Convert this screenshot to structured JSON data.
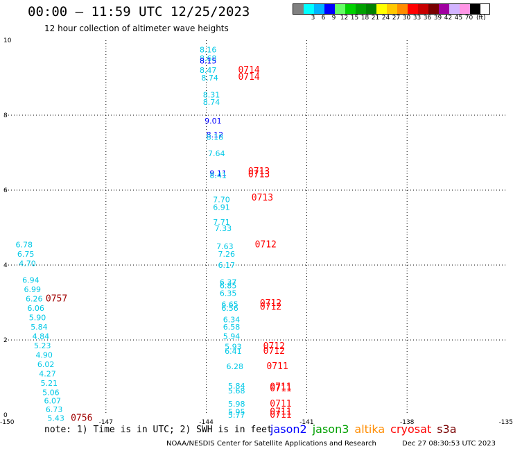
{
  "header": {
    "title": "00:00 – 11:59 UTC 12/25/2023",
    "subtitle": "12 hour collection of altimeter wave heights"
  },
  "legend": {
    "unit": "(ft)",
    "steps": [
      {
        "label": "",
        "color": "#808080"
      },
      {
        "label": "3",
        "color": "#00ffff"
      },
      {
        "label": "6",
        "color": "#00b4ff"
      },
      {
        "label": "9",
        "color": "#0000ff"
      },
      {
        "label": "12",
        "color": "#64ff64"
      },
      {
        "label": "15",
        "color": "#00d200"
      },
      {
        "label": "18",
        "color": "#00a000"
      },
      {
        "label": "21",
        "color": "#008000"
      },
      {
        "label": "24",
        "color": "#ffff00"
      },
      {
        "label": "27",
        "color": "#ffc800"
      },
      {
        "label": "30",
        "color": "#ff8c00"
      },
      {
        "label": "33",
        "color": "#ff0000"
      },
      {
        "label": "36",
        "color": "#c80000"
      },
      {
        "label": "39",
        "color": "#780000"
      },
      {
        "label": "42",
        "color": "#a000a0"
      },
      {
        "label": "45",
        "color": "#d2b4ff"
      },
      {
        "label": "70",
        "color": "#ff96e6"
      },
      {
        "label": "",
        "color": "#000000"
      }
    ]
  },
  "chart_data": {
    "type": "scatter",
    "xlim": [
      -150,
      -135
    ],
    "ylim": [
      0,
      10
    ],
    "x_ticks": [
      "-150",
      "-147",
      "-144",
      "-141",
      "-138",
      "-135"
    ],
    "x_tick_values": [
      -150,
      -147,
      -144,
      -141,
      -138,
      -135
    ],
    "y_ticks": [
      "0",
      "2",
      "4",
      "6",
      "8",
      "10"
    ],
    "y_tick_values": [
      0,
      2,
      4,
      6,
      8,
      10
    ],
    "grid": true,
    "colors": {
      "cyan": "#00c8e6",
      "blue": "#0000ff",
      "red": "#ff0000",
      "darkred": "#a00000"
    },
    "swh_labels": [
      {
        "text": "8.16",
        "x": -144.2,
        "y": 9.75,
        "c": "cyan"
      },
      {
        "text": "8.68",
        "x": -144.2,
        "y": 9.52,
        "c": "cyan"
      },
      {
        "text": "8.15",
        "x": -144.2,
        "y": 9.45,
        "c": "blue"
      },
      {
        "text": "8.47",
        "x": -144.2,
        "y": 9.2,
        "c": "cyan"
      },
      {
        "text": "8.74",
        "x": -144.15,
        "y": 9.0,
        "c": "cyan"
      },
      {
        "text": "8.31",
        "x": -144.1,
        "y": 8.55,
        "c": "cyan"
      },
      {
        "text": "8.74",
        "x": -144.1,
        "y": 8.35,
        "c": "cyan"
      },
      {
        "text": "9.01",
        "x": -144.05,
        "y": 7.85,
        "c": "blue"
      },
      {
        "text": "8.12",
        "x": -144.0,
        "y": 7.48,
        "c": "blue"
      },
      {
        "text": "8.18",
        "x": -144.0,
        "y": 7.42,
        "c": "cyan"
      },
      {
        "text": "7.64",
        "x": -143.95,
        "y": 6.98,
        "c": "cyan"
      },
      {
        "text": "9.11",
        "x": -143.9,
        "y": 6.45,
        "c": "blue"
      },
      {
        "text": "8.41",
        "x": -143.9,
        "y": 6.4,
        "c": "cyan"
      },
      {
        "text": "7.70",
        "x": -143.8,
        "y": 5.75,
        "c": "cyan"
      },
      {
        "text": "6.91",
        "x": -143.8,
        "y": 5.55,
        "c": "cyan"
      },
      {
        "text": "7.71",
        "x": -143.8,
        "y": 5.15,
        "c": "cyan"
      },
      {
        "text": "7.33",
        "x": -143.75,
        "y": 4.98,
        "c": "cyan"
      },
      {
        "text": "7.63",
        "x": -143.7,
        "y": 4.5,
        "c": "cyan"
      },
      {
        "text": "7.26",
        "x": -143.65,
        "y": 4.3,
        "c": "cyan"
      },
      {
        "text": "6.17",
        "x": -143.65,
        "y": 4.0,
        "c": "cyan"
      },
      {
        "text": "6.37",
        "x": -143.6,
        "y": 3.55,
        "c": "cyan"
      },
      {
        "text": "6.85",
        "x": -143.6,
        "y": 3.45,
        "c": "cyan"
      },
      {
        "text": "6.35",
        "x": -143.6,
        "y": 3.25,
        "c": "cyan"
      },
      {
        "text": "6.65",
        "x": -143.55,
        "y": 2.95,
        "c": "cyan"
      },
      {
        "text": "6.56",
        "x": -143.55,
        "y": 2.85,
        "c": "cyan"
      },
      {
        "text": "6.34",
        "x": -143.5,
        "y": 2.55,
        "c": "cyan"
      },
      {
        "text": "6.58",
        "x": -143.5,
        "y": 2.35,
        "c": "cyan"
      },
      {
        "text": "5.94",
        "x": -143.5,
        "y": 2.1,
        "c": "cyan"
      },
      {
        "text": "5.93",
        "x": -143.45,
        "y": 1.82,
        "c": "cyan"
      },
      {
        "text": "6.41",
        "x": -143.45,
        "y": 1.7,
        "c": "cyan"
      },
      {
        "text": "6.28",
        "x": -143.4,
        "y": 1.3,
        "c": "cyan"
      },
      {
        "text": "5.84",
        "x": -143.35,
        "y": 0.78,
        "c": "cyan"
      },
      {
        "text": "5.68",
        "x": -143.35,
        "y": 0.65,
        "c": "cyan"
      },
      {
        "text": "5.98",
        "x": -143.35,
        "y": 0.3,
        "c": "cyan"
      },
      {
        "text": "5.95",
        "x": -143.35,
        "y": 0.08,
        "c": "cyan"
      },
      {
        "text": "5.77",
        "x": -143.35,
        "y": 0.0,
        "c": "cyan"
      },
      {
        "text": "6.78",
        "x": -149.7,
        "y": 4.55,
        "c": "cyan"
      },
      {
        "text": "6.75",
        "x": -149.65,
        "y": 4.3,
        "c": "cyan"
      },
      {
        "text": "4.70",
        "x": -149.6,
        "y": 4.05,
        "c": "cyan"
      },
      {
        "text": "6.94",
        "x": -149.5,
        "y": 3.6,
        "c": "cyan"
      },
      {
        "text": "6.99",
        "x": -149.45,
        "y": 3.35,
        "c": "cyan"
      },
      {
        "text": "6.26",
        "x": -149.4,
        "y": 3.1,
        "c": "cyan"
      },
      {
        "text": "6.06",
        "x": -149.35,
        "y": 2.85,
        "c": "cyan"
      },
      {
        "text": "5.90",
        "x": -149.3,
        "y": 2.6,
        "c": "cyan"
      },
      {
        "text": "5.84",
        "x": -149.25,
        "y": 2.35,
        "c": "cyan"
      },
      {
        "text": "4.84",
        "x": -149.2,
        "y": 2.1,
        "c": "cyan"
      },
      {
        "text": "5.23",
        "x": -149.15,
        "y": 1.85,
        "c": "cyan"
      },
      {
        "text": "4.90",
        "x": -149.1,
        "y": 1.6,
        "c": "cyan"
      },
      {
        "text": "6.02",
        "x": -149.05,
        "y": 1.35,
        "c": "cyan"
      },
      {
        "text": "4.27",
        "x": -149.0,
        "y": 1.1,
        "c": "cyan"
      },
      {
        "text": "5.21",
        "x": -148.95,
        "y": 0.85,
        "c": "cyan"
      },
      {
        "text": "5.06",
        "x": -148.9,
        "y": 0.6,
        "c": "cyan"
      },
      {
        "text": "6.07",
        "x": -148.85,
        "y": 0.38,
        "c": "cyan"
      },
      {
        "text": "6.73",
        "x": -148.8,
        "y": 0.15,
        "c": "cyan"
      },
      {
        "text": "5.43",
        "x": -148.75,
        "y": -0.08,
        "c": "cyan"
      }
    ],
    "time_labels": [
      {
        "text": "0714",
        "x": -143.05,
        "y": 9.2,
        "c": "red"
      },
      {
        "text": "0714",
        "x": -143.05,
        "y": 9.02,
        "c": "red"
      },
      {
        "text": "0713",
        "x": -142.75,
        "y": 6.5,
        "c": "red"
      },
      {
        "text": "0713",
        "x": -142.75,
        "y": 6.42,
        "c": "red"
      },
      {
        "text": "0713",
        "x": -142.65,
        "y": 5.8,
        "c": "red"
      },
      {
        "text": "0712",
        "x": -142.55,
        "y": 4.55,
        "c": "red"
      },
      {
        "text": "0712",
        "x": -142.4,
        "y": 2.98,
        "c": "red"
      },
      {
        "text": "0712",
        "x": -142.4,
        "y": 2.88,
        "c": "red"
      },
      {
        "text": "0712",
        "x": -142.3,
        "y": 1.83,
        "c": "red"
      },
      {
        "text": "0712",
        "x": -142.3,
        "y": 1.7,
        "c": "red"
      },
      {
        "text": "0711",
        "x": -142.2,
        "y": 1.3,
        "c": "red"
      },
      {
        "text": "0711",
        "x": -142.1,
        "y": 0.75,
        "c": "red"
      },
      {
        "text": "0711",
        "x": -142.1,
        "y": 0.7,
        "c": "red"
      },
      {
        "text": "0711",
        "x": -142.1,
        "y": 0.3,
        "c": "red"
      },
      {
        "text": "0711",
        "x": -142.1,
        "y": 0.08,
        "c": "red"
      },
      {
        "text": "0711",
        "x": -142.1,
        "y": 0.0,
        "c": "red"
      },
      {
        "text": "0757",
        "x": -148.8,
        "y": 3.1,
        "c": "darkred"
      },
      {
        "text": "0756",
        "x": -148.05,
        "y": -0.08,
        "c": "darkred"
      }
    ]
  },
  "footer": {
    "note": "note: 1) Time is in UTC; 2) SWH is in feet",
    "satellites": [
      {
        "name": "jason2",
        "color": "#0000ff"
      },
      {
        "name": "jason3",
        "color": "#00a000"
      },
      {
        "name": "altika",
        "color": "#ff8c00"
      },
      {
        "name": "cryosat",
        "color": "#ff0000"
      },
      {
        "name": "s3a",
        "color": "#780000"
      }
    ],
    "credit": "NOAA/NESDIS Center for Satellite Applications and Research",
    "timestamp": "Dec 27 08:30:53 UTC 2023"
  }
}
